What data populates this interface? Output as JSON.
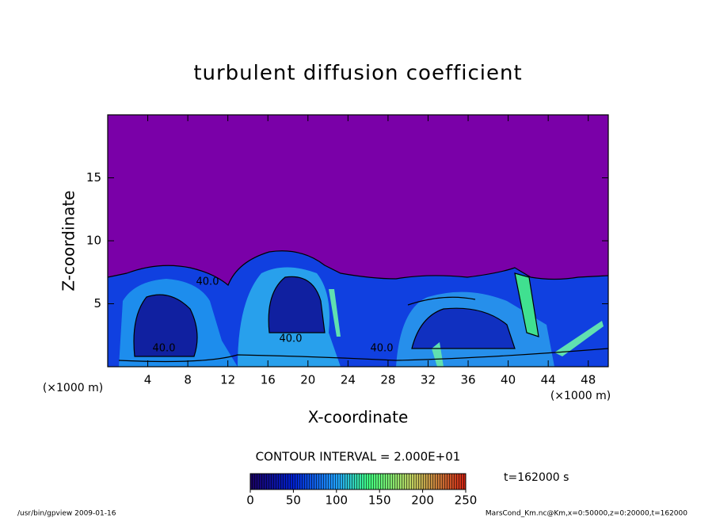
{
  "chart_data": {
    "type": "contour",
    "title": "turbulent diffusion coefficient",
    "x_label": "X-coordinate",
    "y_label": "Z-coordinate",
    "x_unit": "(×1000 m)",
    "x_unit_right": "(×1000 m)",
    "xlim": [
      0,
      50
    ],
    "ylim": [
      0,
      20
    ],
    "xticks": [
      4,
      8,
      12,
      16,
      20,
      24,
      28,
      32,
      36,
      40,
      44,
      48
    ],
    "yticks": [
      5,
      10,
      15
    ],
    "contour_labels": [
      "40.0",
      "40.0",
      "40.0",
      "40.0"
    ],
    "contour_interval": "CONTOUR INTERVAL = 2.000E+01",
    "time_label": "t=162000 s",
    "colorbar": {
      "lim": [
        0,
        250
      ],
      "ticks": [
        0,
        50,
        100,
        150,
        200,
        250
      ]
    },
    "footer_left": "/usr/bin/gpview  2009-01-16",
    "footer_right": "MarsCond_Km.nc@Km,x=0:50000,z=0:20000,t=162000"
  }
}
